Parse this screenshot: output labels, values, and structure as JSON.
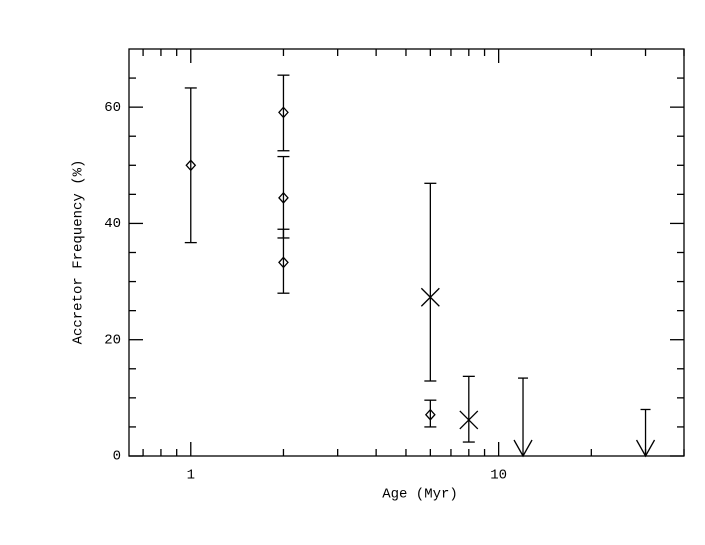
{
  "chart_data": {
    "type": "scatter",
    "xlabel": "Age (Myr)",
    "ylabel": "Accretor Frequency (%)",
    "xscale": "log",
    "xlim": [
      0.63,
      40
    ],
    "xticks": [
      1,
      10
    ],
    "xminor_ticks": [
      0.7,
      0.8,
      0.9,
      2,
      3,
      4,
      5,
      6,
      7,
      8,
      9,
      20,
      30,
      40
    ],
    "ylim": [
      0,
      70
    ],
    "yticks": [
      0,
      20,
      40,
      60
    ],
    "yminor_ticks": [
      5,
      10,
      15,
      25,
      30,
      35,
      45,
      50,
      55,
      65
    ],
    "color": "#000000",
    "series": [
      {
        "marker": "diamond",
        "x": [
          1,
          2,
          2,
          2,
          6
        ],
        "values": [
          50,
          59.1,
          44.4,
          33.3,
          7.1
        ],
        "ylow": [
          36.7,
          52.5,
          37.5,
          28,
          5
        ],
        "yhigh": [
          63.3,
          65.5,
          51.5,
          39,
          9.6
        ]
      },
      {
        "marker": "cross",
        "x": [
          6,
          8
        ],
        "values": [
          27.3,
          6.2
        ],
        "ylow": [
          12.9,
          2.4
        ],
        "yhigh": [
          46.9,
          13.7
        ]
      },
      {
        "marker": "upper-limit",
        "x": [
          12,
          30
        ],
        "values": [
          13.4,
          8
        ]
      }
    ]
  }
}
